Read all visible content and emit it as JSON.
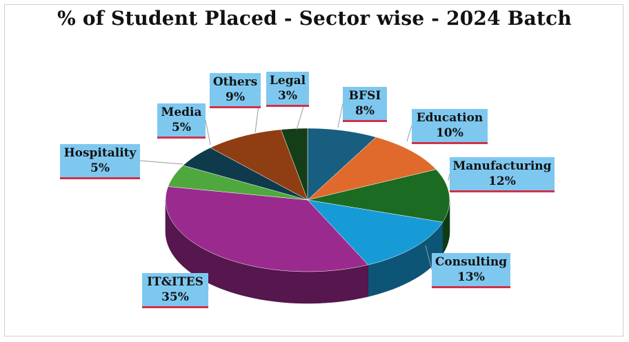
{
  "chart_data": {
    "type": "pie",
    "title": "% of Student Placed - Sector wise - 2024 Batch",
    "series": [
      {
        "category": "BFSI",
        "value": 8,
        "label": "8%",
        "color": "#175e80"
      },
      {
        "category": "Education",
        "value": 10,
        "label": "10%",
        "color": "#e06a2b"
      },
      {
        "category": "Manufacturing",
        "value": 12,
        "label": "12%",
        "color": "#1c6b23"
      },
      {
        "category": "Consulting",
        "value": 13,
        "label": "13%",
        "color": "#179bd7"
      },
      {
        "category": "IT&ITES",
        "value": 35,
        "label": "35%",
        "color": "#9b2a8e"
      },
      {
        "category": "Hospitality",
        "value": 5,
        "label": "5%",
        "color": "#4fa83d"
      },
      {
        "category": "Media",
        "value": 5,
        "label": "5%",
        "color": "#0f3a4c"
      },
      {
        "category": "Others",
        "value": 9,
        "label": "9%",
        "color": "#8f3d12"
      },
      {
        "category": "Legal",
        "value": 3,
        "label": "3%",
        "color": "#143e17"
      }
    ]
  }
}
